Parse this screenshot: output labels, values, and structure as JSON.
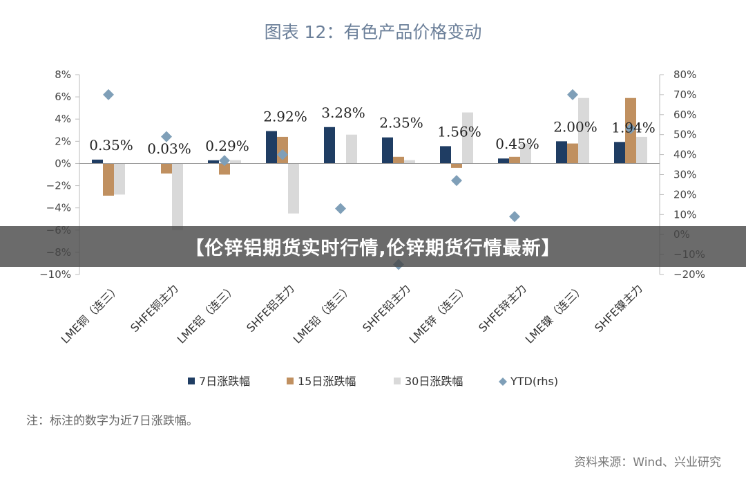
{
  "chart_data": {
    "type": "bar",
    "title": "图表 12：有色产品价格变动",
    "categories": [
      "LME铜（连三）",
      "SHFE铜主力",
      "LME铝（连三）",
      "SHFE铝主力",
      "LME铅（连三）",
      "SHFE铅主力",
      "LME锌（连三）",
      "SHFE锌主力",
      "LME镍（连三）",
      "SHFE镍主力"
    ],
    "series": [
      {
        "name": "7日涨跌幅",
        "color": "#1f3d63",
        "axis": "left",
        "values": [
          0.35,
          0.03,
          0.29,
          2.92,
          3.28,
          2.35,
          1.56,
          0.45,
          2.0,
          1.94
        ]
      },
      {
        "name": "15日涨跌幅",
        "color": "#c09060",
        "axis": "left",
        "values": [
          -2.9,
          -0.9,
          -1.0,
          2.4,
          0.0,
          0.6,
          -0.4,
          0.6,
          1.8,
          5.9
        ]
      },
      {
        "name": "30日涨跌幅",
        "color": "#d9d9d9",
        "axis": "left",
        "values": [
          -2.8,
          -6.0,
          0.3,
          -4.5,
          2.6,
          0.3,
          4.6,
          1.8,
          5.9,
          2.4
        ]
      },
      {
        "name": "YTD(rhs)",
        "color": "#7f9fb8",
        "axis": "right",
        "type": "scatter",
        "values": [
          70,
          49,
          37,
          40,
          13,
          -15,
          27,
          9,
          70,
          53
        ]
      }
    ],
    "data_labels": [
      "0.35%",
      "0.03%",
      "0.29%",
      "2.92%",
      "3.28%",
      "2.35%",
      "1.56%",
      "0.45%",
      "2.00%",
      "1.94%"
    ],
    "ylim": [
      -10,
      8
    ],
    "y_ticks": [
      "8%",
      "6%",
      "4%",
      "2%",
      "0%",
      "−2%",
      "−4%",
      "−6%",
      "−8%",
      "−10%"
    ],
    "y2lim": [
      -20,
      80
    ],
    "y2_ticks": [
      "80%",
      "70%",
      "60%",
      "50%",
      "40%",
      "30%",
      "20%",
      "10%",
      "0%",
      "−10%",
      "−20%"
    ],
    "legend_position": "bottom",
    "grid": false
  },
  "overlay": {
    "banner": "【伦锌铝期货实时行情,伦锌期货行情最新】"
  },
  "footer": {
    "note": "注：标注的数字为近7日涨跌幅。",
    "source": "资料来源：Wind、兴业研究"
  }
}
